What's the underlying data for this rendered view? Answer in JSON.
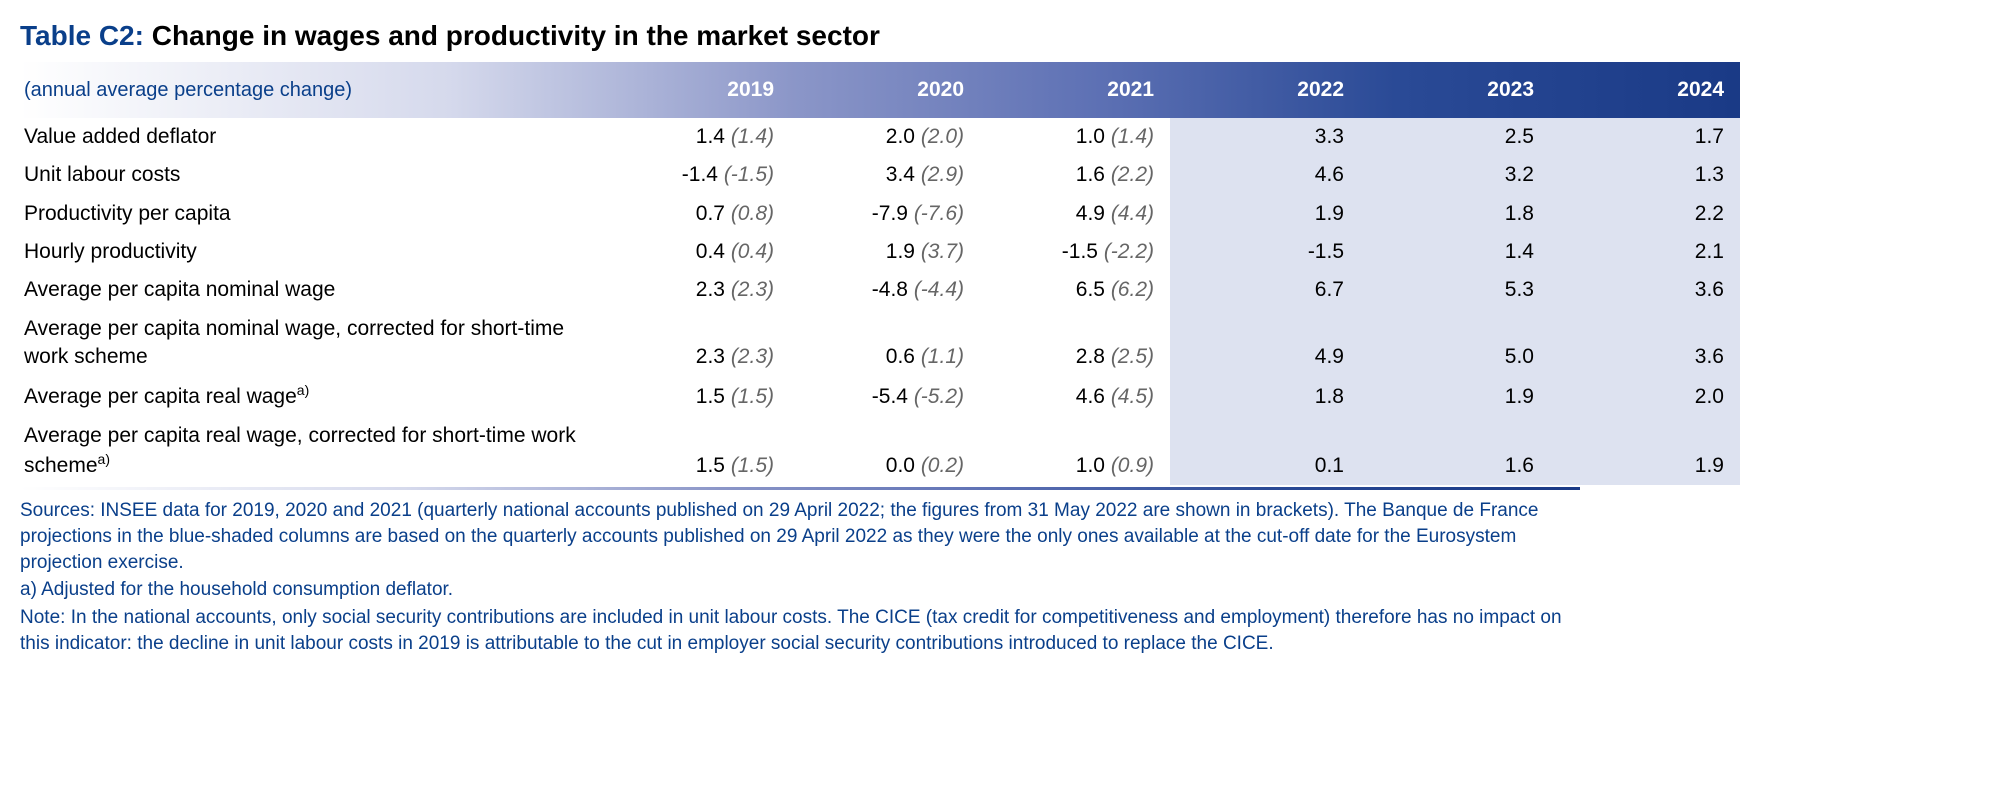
{
  "title": {
    "label": "Table C2:",
    "text": " Change in wages and productivity in the market sector"
  },
  "header": {
    "subtitle": "(annual average percentage change)",
    "years": [
      "2019",
      "2020",
      "2021",
      "2022",
      "2023",
      "2024"
    ]
  },
  "shaded_start_index": 3,
  "rows": [
    {
      "label": "Value added deflator",
      "sup": "",
      "cells": [
        {
          "v": "1.4",
          "p": "(1.4)"
        },
        {
          "v": "2.0",
          "p": "(2.0)"
        },
        {
          "v": "1.0",
          "p": "(1.4)"
        },
        {
          "v": "3.3",
          "p": ""
        },
        {
          "v": "2.5",
          "p": ""
        },
        {
          "v": "1.7",
          "p": ""
        }
      ]
    },
    {
      "label": "Unit labour costs",
      "sup": "",
      "cells": [
        {
          "v": "-1.4",
          "p": "(-1.5)"
        },
        {
          "v": "3.4",
          "p": "(2.9)"
        },
        {
          "v": "1.6",
          "p": "(2.2)"
        },
        {
          "v": "4.6",
          "p": ""
        },
        {
          "v": "3.2",
          "p": ""
        },
        {
          "v": "1.3",
          "p": ""
        }
      ]
    },
    {
      "label": "Productivity per capita",
      "sup": "",
      "cells": [
        {
          "v": "0.7",
          "p": "(0.8)"
        },
        {
          "v": "-7.9",
          "p": "(-7.6)"
        },
        {
          "v": "4.9",
          "p": "(4.4)"
        },
        {
          "v": "1.9",
          "p": ""
        },
        {
          "v": "1.8",
          "p": ""
        },
        {
          "v": "2.2",
          "p": ""
        }
      ]
    },
    {
      "label": "Hourly productivity",
      "sup": "",
      "cells": [
        {
          "v": "0.4",
          "p": "(0.4)"
        },
        {
          "v": "1.9",
          "p": "(3.7)"
        },
        {
          "v": "-1.5",
          "p": "(-2.2)"
        },
        {
          "v": "-1.5",
          "p": ""
        },
        {
          "v": "1.4",
          "p": ""
        },
        {
          "v": "2.1",
          "p": ""
        }
      ]
    },
    {
      "label": "Average per capita nominal wage",
      "sup": "",
      "cells": [
        {
          "v": "2.3",
          "p": "(2.3)"
        },
        {
          "v": "-4.8",
          "p": "(-4.4)"
        },
        {
          "v": "6.5",
          "p": "(6.2)"
        },
        {
          "v": "6.7",
          "p": ""
        },
        {
          "v": "5.3",
          "p": ""
        },
        {
          "v": "3.6",
          "p": ""
        }
      ]
    },
    {
      "label": "Average per capita nominal wage, corrected for short-time work scheme",
      "sup": "",
      "cells": [
        {
          "v": "2.3",
          "p": "(2.3)"
        },
        {
          "v": "0.6",
          "p": "(1.1)"
        },
        {
          "v": "2.8",
          "p": "(2.5)"
        },
        {
          "v": "4.9",
          "p": ""
        },
        {
          "v": "5.0",
          "p": ""
        },
        {
          "v": "3.6",
          "p": ""
        }
      ]
    },
    {
      "label": "Average per capita real wage",
      "sup": "a)",
      "cells": [
        {
          "v": "1.5",
          "p": "(1.5)"
        },
        {
          "v": "-5.4",
          "p": "(-5.2)"
        },
        {
          "v": "4.6",
          "p": "(4.5)"
        },
        {
          "v": "1.8",
          "p": ""
        },
        {
          "v": "1.9",
          "p": ""
        },
        {
          "v": "2.0",
          "p": ""
        }
      ]
    },
    {
      "label": "Average per capita real wage, corrected for short-time work scheme",
      "sup": "a)",
      "cells": [
        {
          "v": "1.5",
          "p": "(1.5)"
        },
        {
          "v": "0.0",
          "p": "(0.2)"
        },
        {
          "v": "1.0",
          "p": "(0.9)"
        },
        {
          "v": "0.1",
          "p": ""
        },
        {
          "v": "1.6",
          "p": ""
        },
        {
          "v": "1.9",
          "p": ""
        }
      ]
    }
  ],
  "footnotes": {
    "sources": "Sources: INSEE data for 2019, 2020 and 2021 (quarterly national accounts published on 29 April 2022; the figures from 31 May 2022 are shown in brackets). The Banque de France projections in the blue-shaded columns are based on the quarterly accounts published on 29 April 2022 as they were the only ones available at the cut-off date for the Eurosystem projection exercise.",
    "a": "a) Adjusted for the household consumption deflator.",
    "note": "Note: In the national accounts, only social security contributions are included in unit labour costs. The CICE (tax credit for competitiveness and employment) therefore has no impact on this indicator: the decline in unit labour costs in 2019 is attributable to the cut in employer social security contributions introduced to replace the CICE."
  },
  "colors": {
    "title_label": "#0a3f8a",
    "footnote_text": "#0a3f8a",
    "shaded_bg": "#dde2f0",
    "paren_text": "#666666",
    "header_gradient_start": "#ffffff",
    "header_gradient_end": "#1a3a86"
  },
  "typography": {
    "title_fontsize": 28,
    "header_fontsize": 21,
    "body_fontsize": 21,
    "footnote_fontsize": 19
  }
}
